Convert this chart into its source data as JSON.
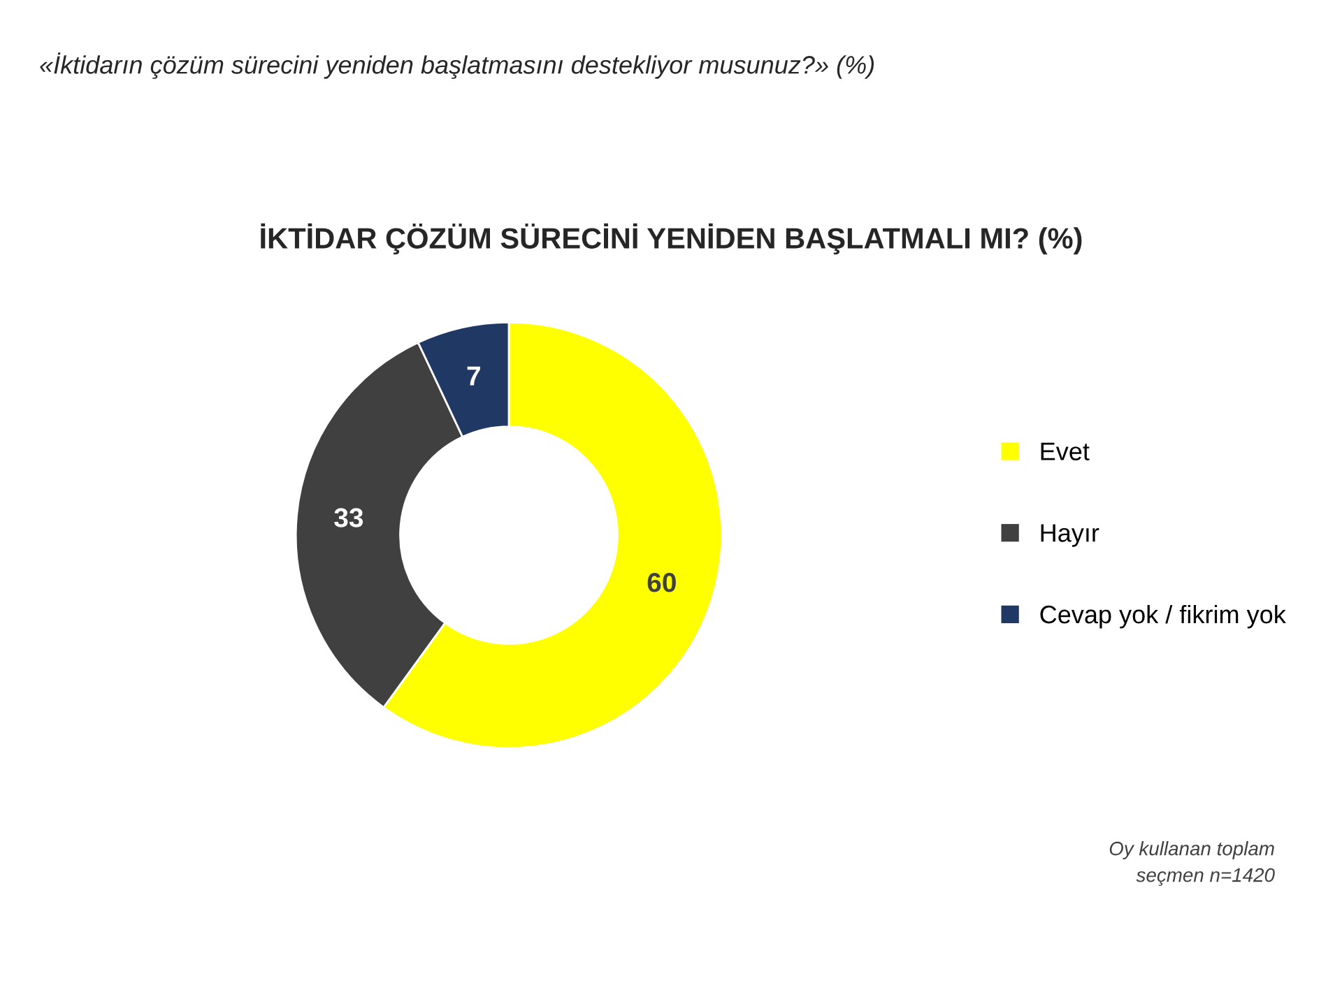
{
  "chart_data": {
    "type": "donut",
    "title": "İKTİDAR ÇÖZÜM SÜRECİNİ YENİDEN BAŞLATMALI MI? (%)",
    "subtitle": "«İktidarın çözüm sürecini yeniden başlatmasını destekliyor musunuz?» (%)",
    "categories": [
      "Evet",
      "Hayır",
      "Cevap yok / fikrim yok"
    ],
    "values": [
      60,
      33,
      7
    ],
    "colors": [
      "#ffff00",
      "#404040",
      "#1f3864"
    ],
    "data_labels": true,
    "legend": "right",
    "annotations": [
      "Oy kullanan toplam\nseçmen n=1420"
    ]
  }
}
